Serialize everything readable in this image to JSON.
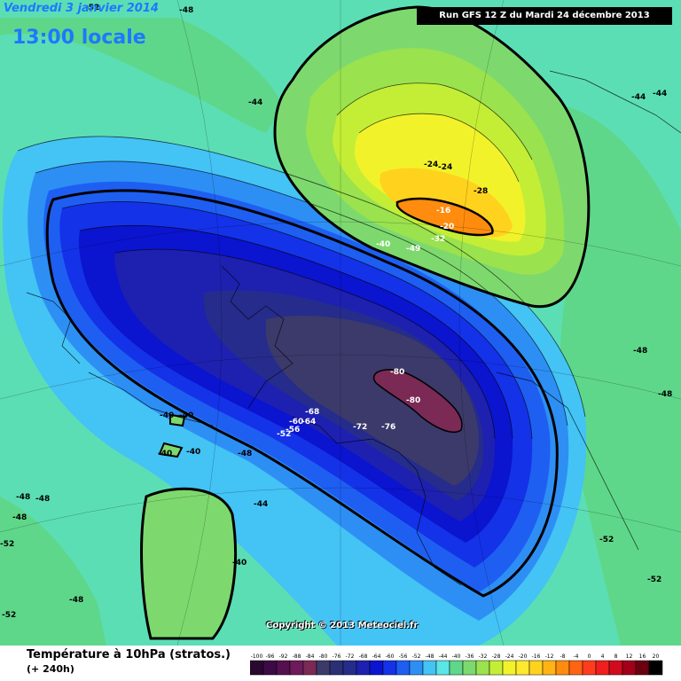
{
  "header": {
    "date": "Vendredi 3 janvier 2014",
    "time": "13:00 locale",
    "run": "Run GFS 12 Z du Mardi 24 décembre 2013"
  },
  "copyright": "Copyright © 2013 Meteociel.fr",
  "legend": {
    "title": "Température à 10hPa (stratos.)",
    "subtitle": "(+ 240h)",
    "scale_labels": [
      "-100",
      "-96",
      "-92",
      "-88",
      "-84",
      "-80",
      "-76",
      "-72",
      "-68",
      "-64",
      "-60",
      "-56",
      "-52",
      "-48",
      "-44",
      "-40",
      "-36",
      "-32",
      "-28",
      "-24",
      "-20",
      "-16",
      "-12",
      "-8",
      "-4",
      "0",
      "4",
      "8",
      "12",
      "16",
      "20"
    ],
    "scale_colors": [
      "#2a0830",
      "#3c0a46",
      "#55104f",
      "#6e1a5c",
      "#7a2a55",
      "#3c3a6a",
      "#2b2f73",
      "#262c8c",
      "#1e20b0",
      "#0b14cf",
      "#1432e8",
      "#1e5ff2",
      "#2d8ff4",
      "#44c3f5",
      "#5ae6e6",
      "#5ed78a",
      "#7dd96e",
      "#9ae24e",
      "#c4ee36",
      "#f2f22a",
      "#ffe92e",
      "#ffd21e",
      "#ffb414",
      "#ff8c0e",
      "#ff6414",
      "#ff3c1e",
      "#f01e1e",
      "#d20a1e",
      "#a0001a",
      "#6a0010",
      "#000000"
    ]
  },
  "isotherm_labels": [
    {
      "text": "-52"
    },
    {
      "text": "-48"
    },
    {
      "text": "-44"
    },
    {
      "text": "-44"
    },
    {
      "text": "-44"
    },
    {
      "text": "-24"
    },
    {
      "text": "-24"
    },
    {
      "text": "-28"
    },
    {
      "text": "-16"
    },
    {
      "text": "-20"
    },
    {
      "text": "-32"
    },
    {
      "text": "-40"
    },
    {
      "text": "-49"
    },
    {
      "text": "-48"
    },
    {
      "text": "-48"
    },
    {
      "text": "-80"
    },
    {
      "text": "-80"
    },
    {
      "text": "-68"
    },
    {
      "text": "-72"
    },
    {
      "text": "-76"
    },
    {
      "text": "-64"
    },
    {
      "text": "-60"
    },
    {
      "text": "-56"
    },
    {
      "text": "-52"
    },
    {
      "text": "-40"
    },
    {
      "text": "-40"
    },
    {
      "text": "-40"
    },
    {
      "text": "-40"
    },
    {
      "text": "-48"
    },
    {
      "text": "-48"
    },
    {
      "text": "-48"
    },
    {
      "text": "-48"
    },
    {
      "text": "-44"
    },
    {
      "text": "-40"
    },
    {
      "text": "-52"
    },
    {
      "text": "-52"
    },
    {
      "text": "-52"
    },
    {
      "text": "-48"
    },
    {
      "text": "-52"
    }
  ],
  "colors": {
    "ocean_background": "#5ae6e6",
    "polar_vortex_core": "#7a2a55",
    "warm_core": "#ff8c0e"
  }
}
